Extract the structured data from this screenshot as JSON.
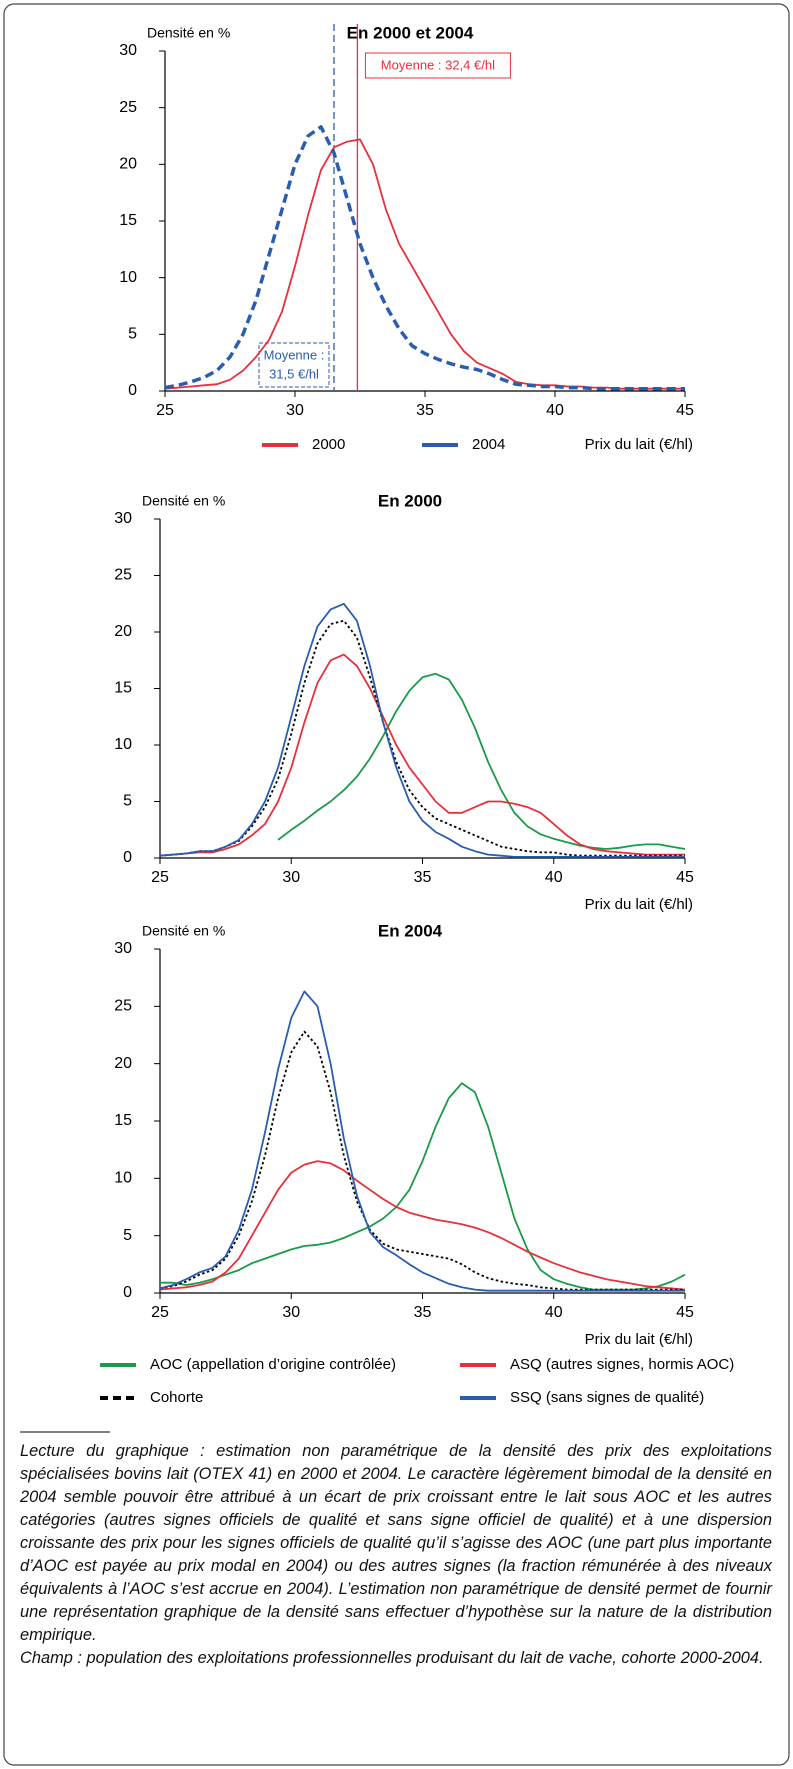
{
  "charts": [
    {
      "type": "line",
      "title": "En 2000 et 2004",
      "y_label": "Densité en %",
      "x_label": "Prix du lait (€/hl)",
      "xlim": [
        25,
        45
      ],
      "xticks": [
        25,
        30,
        35,
        40,
        45
      ],
      "ylim": [
        0,
        30
      ],
      "yticks": [
        0,
        5,
        10,
        15,
        20,
        25,
        30
      ],
      "legend": "bottom",
      "x": [
        25,
        25.5,
        26,
        26.5,
        27,
        27.5,
        28,
        28.5,
        29,
        29.5,
        30,
        30.5,
        31,
        31.5,
        32,
        32.5,
        33,
        33.5,
        34,
        34.5,
        35,
        35.5,
        36,
        36.5,
        37,
        37.5,
        38,
        38.5,
        39,
        39.5,
        40,
        40.5,
        41,
        41.5,
        42,
        42.5,
        43,
        43.5,
        44,
        44.5,
        45
      ],
      "series": [
        {
          "name": "2000",
          "color": "#e8303a",
          "style": "solid",
          "values": [
            0.2,
            0.3,
            0.4,
            0.5,
            0.6,
            1.0,
            1.8,
            3.0,
            4.5,
            7,
            11,
            15.5,
            19.5,
            21.5,
            22,
            22.2,
            20,
            16,
            13,
            11,
            9,
            7,
            5,
            3.5,
            2.5,
            2.0,
            1.5,
            0.8,
            0.6,
            0.5,
            0.5,
            0.4,
            0.4,
            0.3,
            0.3,
            0.2,
            0.2,
            0.2,
            0.2,
            0.2,
            0.2
          ]
        },
        {
          "name": "2004",
          "color": "#2a5db0",
          "style": "dashed",
          "values": [
            0.3,
            0.5,
            0.8,
            1.2,
            1.8,
            3,
            5,
            8,
            12,
            16,
            20,
            22.5,
            23.3,
            21,
            17,
            13,
            10,
            7.5,
            5.5,
            4,
            3.3,
            2.8,
            2.4,
            2.1,
            1.9,
            1.5,
            1,
            0.6,
            0.5,
            0.4,
            0.4,
            0.3,
            0.3,
            0.2,
            0.2,
            0.2,
            0.2,
            0.2,
            0.2,
            0.2,
            0.2
          ]
        }
      ],
      "annotations": [
        {
          "x": 32.4,
          "lines": [
            "Moyenne : 32,4 €/hl"
          ],
          "color": "#e8303a",
          "position": "top"
        },
        {
          "x": 31.5,
          "lines": [
            "Moyenne :",
            "31,5 €/hl"
          ],
          "color": "#2a5db0",
          "position": "bottom"
        }
      ]
    },
    {
      "type": "line",
      "title": "En 2000",
      "y_label": "Densité en %",
      "x_label": "Prix du lait (€/hl)",
      "xlim": [
        25,
        45
      ],
      "xticks": [
        25,
        30,
        35,
        40,
        45
      ],
      "ylim": [
        0,
        30
      ],
      "yticks": [
        0,
        5,
        10,
        15,
        20,
        25,
        30
      ],
      "legend": "none",
      "x": [
        25,
        25.5,
        26,
        26.5,
        27,
        27.5,
        28,
        28.5,
        29,
        29.5,
        30,
        30.5,
        31,
        31.5,
        32,
        32.5,
        33,
        33.5,
        34,
        34.5,
        35,
        35.5,
        36,
        36.5,
        37,
        37.5,
        38,
        38.5,
        39,
        39.5,
        40,
        40.5,
        41,
        41.5,
        42,
        42.5,
        43,
        43.5,
        44,
        44.5,
        45
      ],
      "series": [
        {
          "color": "#1a9a4a",
          "style": "solid",
          "values": [
            null,
            null,
            null,
            null,
            null,
            null,
            null,
            null,
            null,
            1.6,
            2.5,
            3.3,
            4.2,
            5,
            6,
            7.2,
            8.8,
            10.8,
            13,
            14.8,
            16,
            16.3,
            15.8,
            14,
            11.5,
            8.5,
            6,
            4,
            2.8,
            2.1,
            1.7,
            1.4,
            1.1,
            0.9,
            0.8,
            0.9,
            1.1,
            1.2,
            1.2,
            1,
            0.8
          ]
        },
        {
          "color": "#e8303a",
          "style": "solid",
          "values": [
            0.2,
            0.3,
            0.4,
            0.5,
            0.5,
            0.8,
            1.2,
            2,
            3,
            5,
            8,
            12,
            15.5,
            17.5,
            18,
            17,
            15,
            12.5,
            10,
            8,
            6.5,
            5,
            4,
            4,
            4.5,
            5,
            5,
            4.8,
            4.5,
            4,
            3,
            2,
            1.2,
            0.8,
            0.6,
            0.5,
            0.4,
            0.3,
            0.3,
            0.3,
            0.3
          ]
        },
        {
          "color": "#000000",
          "style": "dotted",
          "values": [
            0.2,
            0.3,
            0.4,
            0.6,
            0.6,
            1,
            1.5,
            2.8,
            4.5,
            7,
            11,
            15.5,
            19,
            20.7,
            21,
            19.5,
            16,
            12,
            8.5,
            6,
            4.5,
            3.5,
            3,
            2.5,
            2,
            1.5,
            1,
            0.8,
            0.6,
            0.5,
            0.5,
            0.3,
            0.2,
            0.2,
            0.2,
            0.2,
            0.2,
            0.2,
            0.2,
            0.2,
            0.2
          ]
        },
        {
          "color": "#2a5db0",
          "style": "solid",
          "values": [
            0.2,
            0.3,
            0.4,
            0.6,
            0.6,
            1,
            1.6,
            3,
            5,
            8,
            12.5,
            17,
            20.5,
            22,
            22.5,
            21,
            17,
            12,
            8,
            5,
            3.3,
            2.3,
            1.7,
            1,
            0.6,
            0.3,
            0.2,
            0.1,
            0.1,
            0.1,
            0.1,
            0.1,
            0.1,
            0.1,
            0.1,
            0.1,
            0.1,
            0.1,
            0.1,
            0.1,
            0.1
          ]
        }
      ]
    },
    {
      "type": "line",
      "title": "En 2004",
      "y_label": "Densité en %",
      "x_label": "Prix du lait (€/hl)",
      "xlim": [
        25,
        45
      ],
      "xticks": [
        25,
        30,
        35,
        40,
        45
      ],
      "ylim": [
        0,
        30
      ],
      "yticks": [
        0,
        5,
        10,
        15,
        20,
        25,
        30
      ],
      "legend": "bottom",
      "x": [
        25,
        25.5,
        26,
        26.5,
        27,
        27.5,
        28,
        28.5,
        29,
        29.5,
        30,
        30.5,
        31,
        31.5,
        32,
        32.5,
        33,
        33.5,
        34,
        34.5,
        35,
        35.5,
        36,
        36.5,
        37,
        37.5,
        38,
        38.5,
        39,
        39.5,
        40,
        40.5,
        41,
        41.5,
        42,
        42.5,
        43,
        43.5,
        44,
        44.5,
        45
      ],
      "series": [
        {
          "name": "AOC (appellation d’origine contrôlée)",
          "color": "#1a9a4a",
          "style": "solid",
          "values": [
            0.9,
            0.9,
            0.7,
            0.9,
            1.2,
            1.6,
            2,
            2.6,
            3,
            3.4,
            3.8,
            4.1,
            4.2,
            4.4,
            4.8,
            5.3,
            5.8,
            6.5,
            7.5,
            9,
            11.5,
            14.5,
            17,
            18.3,
            17.5,
            14.5,
            10.5,
            6.5,
            3.8,
            2,
            1.2,
            0.8,
            0.5,
            0.3,
            0.3,
            0.3,
            0.3,
            0.4,
            0.6,
            1,
            1.6
          ]
        },
        {
          "name": "ASQ (autres signes, hormis AOC)",
          "color": "#e8303a",
          "style": "solid",
          "values": [
            0.3,
            0.4,
            0.5,
            0.7,
            1,
            1.8,
            3,
            5,
            7,
            9,
            10.5,
            11.2,
            11.5,
            11.3,
            10.7,
            9.8,
            9,
            8.2,
            7.5,
            7,
            6.7,
            6.4,
            6.2,
            6,
            5.7,
            5.3,
            4.8,
            4.2,
            3.6,
            3.1,
            2.6,
            2.2,
            1.8,
            1.5,
            1.2,
            1,
            0.8,
            0.6,
            0.5,
            0.4,
            0.3
          ]
        },
        {
          "name": "Cohorte",
          "color": "#000000",
          "style": "dotted",
          "values": [
            0.4,
            0.6,
            1,
            1.6,
            2,
            3,
            5,
            8,
            12,
            17,
            21,
            22.8,
            21.5,
            17.5,
            12,
            8,
            5.5,
            4.3,
            3.8,
            3.6,
            3.4,
            3.2,
            3,
            2.5,
            1.8,
            1.3,
            1,
            0.8,
            0.7,
            0.5,
            0.4,
            0.3,
            0.3,
            0.3,
            0.3,
            0.3,
            0.3,
            0.3,
            0.3,
            0.3,
            0.3
          ]
        },
        {
          "name": "SSQ (sans signes de qualité)",
          "color": "#2a5db0",
          "style": "solid",
          "values": [
            0.4,
            0.7,
            1.2,
            1.8,
            2.2,
            3.2,
            5.5,
            9,
            14,
            19.5,
            24,
            26.3,
            25,
            20,
            13.5,
            8.5,
            5.3,
            4,
            3.3,
            2.5,
            1.8,
            1.3,
            0.8,
            0.5,
            0.3,
            0.2,
            0.2,
            0.2,
            0.2,
            0.2,
            0.2,
            0.2,
            0.2,
            0.2,
            0.2,
            0.2,
            0.2,
            0.2,
            0.2,
            0.2,
            0.2
          ]
        }
      ]
    }
  ],
  "note": {
    "text": "Lecture du graphique : estimation non paramétrique de la densité des prix des exploitations spécialisées bovins lait (OTEX 41) en 2000 et 2004. Le caractère légèrement bimodal de la densité en 2004 semble pouvoir être attribué à un écart de prix croissant entre le lait sous AOC et les autres catégories (autres signes officiels de qualité et sans signe officiel de qualité) et à une dispersion croissante des prix pour les signes officiels de qualité qu’il s’agisse des AOC (une part plus importante d’AOC est payée au prix modal en 2004) ou des autres signes (la fraction rémunérée à des niveaux équivalents à l’AOC s’est accrue en 2004). L’estimation non paramétrique de densité permet de fournir une représentation graphique de la densité sans effectuer d’hypothèse sur la nature de la distribution empirique.",
    "scope": "Champ : population des exploitations professionnelles produisant du lait de vache, cohorte 2000-2004."
  }
}
